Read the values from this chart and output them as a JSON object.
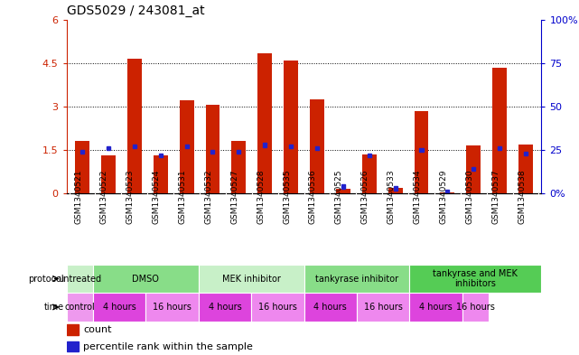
{
  "title": "GDS5029 / 243081_at",
  "samples": [
    "GSM1340521",
    "GSM1340522",
    "GSM1340523",
    "GSM1340524",
    "GSM1340531",
    "GSM1340532",
    "GSM1340527",
    "GSM1340528",
    "GSM1340535",
    "GSM1340536",
    "GSM1340525",
    "GSM1340526",
    "GSM1340533",
    "GSM1340534",
    "GSM1340529",
    "GSM1340530",
    "GSM1340537",
    "GSM1340538"
  ],
  "red_values": [
    1.8,
    1.3,
    4.65,
    1.3,
    3.2,
    3.05,
    1.8,
    4.85,
    4.6,
    3.25,
    0.15,
    1.35,
    0.2,
    2.85,
    0.05,
    1.65,
    4.35,
    1.7
  ],
  "blue_values": [
    24,
    26,
    27,
    22,
    27,
    24,
    24,
    28,
    27,
    26,
    4,
    22,
    3,
    25,
    1,
    14,
    26,
    23
  ],
  "ylim_left": [
    0,
    6
  ],
  "ylim_right": [
    0,
    100
  ],
  "yticks_left": [
    0,
    1.5,
    3.0,
    4.5,
    6.0
  ],
  "yticks_right": [
    0,
    25,
    50,
    75,
    100
  ],
  "ytick_labels_left": [
    "0",
    "1.5",
    "3",
    "4.5",
    "6"
  ],
  "ytick_labels_right": [
    "0%",
    "25",
    "50",
    "75",
    "100%"
  ],
  "bar_color": "#cc2200",
  "blue_color": "#2222cc",
  "proto_groups": [
    {
      "label": "untreated",
      "cols": 1,
      "color": "#c8f0c8"
    },
    {
      "label": "DMSO",
      "cols": 4,
      "color": "#88dd88"
    },
    {
      "label": "MEK inhibitor",
      "cols": 4,
      "color": "#c8f0c8"
    },
    {
      "label": "tankyrase inhibitor",
      "cols": 4,
      "color": "#88dd88"
    },
    {
      "label": "tankyrase and MEK\ninhibitors",
      "cols": 5,
      "color": "#55cc55"
    }
  ],
  "time_groups": [
    {
      "label": "control",
      "cols": 1,
      "color": "#ee99ee"
    },
    {
      "label": "4 hours",
      "cols": 2,
      "color": "#dd44dd"
    },
    {
      "label": "16 hours",
      "cols": 2,
      "color": "#ee88ee"
    },
    {
      "label": "4 hours",
      "cols": 2,
      "color": "#dd44dd"
    },
    {
      "label": "16 hours",
      "cols": 2,
      "color": "#ee88ee"
    },
    {
      "label": "4 hours",
      "cols": 2,
      "color": "#dd44dd"
    },
    {
      "label": "16 hours",
      "cols": 2,
      "color": "#ee88ee"
    },
    {
      "label": "4 hours",
      "cols": 2,
      "color": "#dd44dd"
    },
    {
      "label": "16 hours",
      "cols": 1,
      "color": "#ee88ee"
    }
  ],
  "sample_bg_color": "#dddddd",
  "tick_label_color_left": "#cc2200",
  "tick_label_color_right": "#0000cc"
}
